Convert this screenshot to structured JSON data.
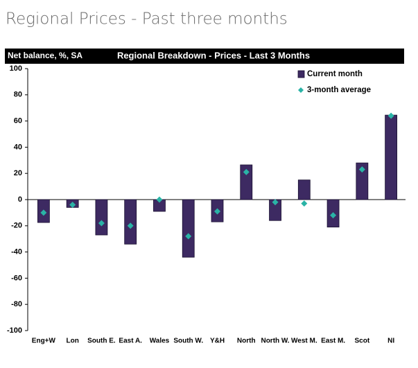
{
  "page_title": "Regional Prices - Past three months",
  "chart_data": {
    "type": "bar",
    "title": "Regional Breakdown - Prices - Last 3 Months",
    "y_label": "Net balance, %, SA",
    "categories": [
      "Eng+W",
      "Lon",
      "South E.",
      "East A.",
      "Wales",
      "South W.",
      "Y&H",
      "North",
      "North W.",
      "West M.",
      "East M.",
      "Scot",
      "NI"
    ],
    "series": [
      {
        "name": "Current month",
        "kind": "bar",
        "color": "#3d2a62",
        "values": [
          -17.5,
          -6,
          -27,
          -34,
          -9,
          -44,
          -17,
          26.5,
          -16,
          15,
          -21,
          28,
          64.5
        ]
      },
      {
        "name": "3-month average",
        "kind": "diamond",
        "color": "#2ab3a6",
        "values": [
          -10,
          -4,
          -18,
          -20,
          0,
          -28,
          -9,
          21,
          -2,
          -3,
          -12,
          23,
          64
        ]
      }
    ],
    "ylim": [
      -100,
      100
    ],
    "yticks": [
      100,
      80,
      60,
      40,
      20,
      0,
      -20,
      -40,
      -60,
      -80,
      -100
    ],
    "grid": false,
    "legend": "top-right"
  }
}
